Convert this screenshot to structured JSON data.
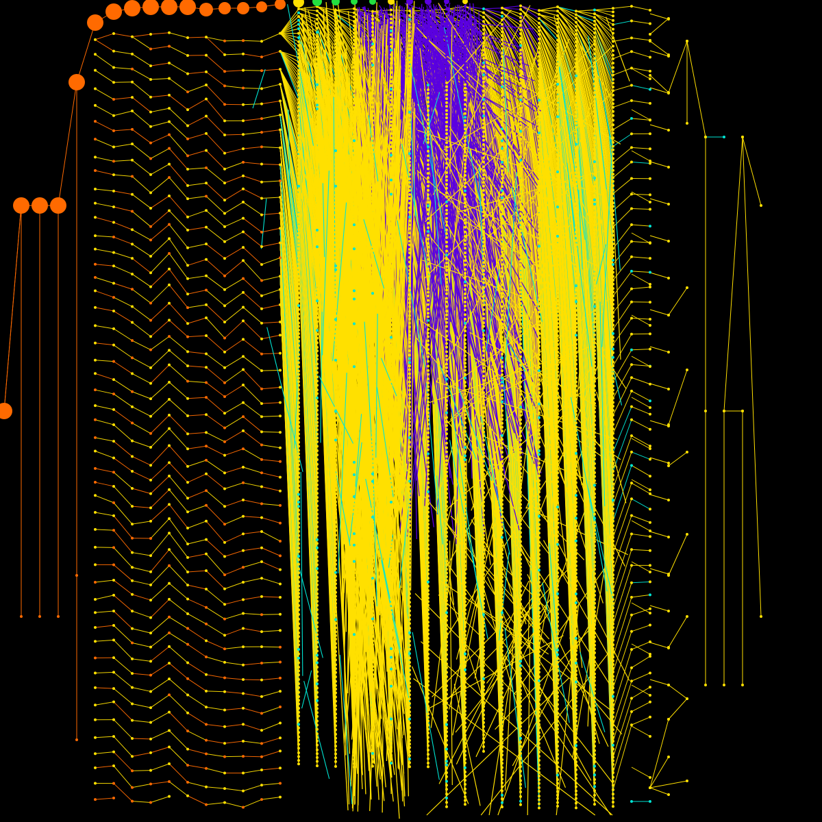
{
  "palette": {
    "background": "#000000",
    "orange": "#ff6a00",
    "yellow": "#ffe000",
    "cyan": "#00e5d4",
    "purple": "#5a00e0",
    "green": "#22e040"
  },
  "graph": {
    "type": "hierarchical-tree",
    "orientation": "top-to-bottom",
    "labels_shown": false,
    "edge_style": "straight",
    "node_shape": "circle",
    "groups": [
      {
        "color": "orange",
        "role": "root-chain"
      },
      {
        "color": "yellow",
        "role": "dominant"
      },
      {
        "color": "cyan",
        "role": "accent"
      },
      {
        "color": "purple",
        "role": "dense-cluster"
      },
      {
        "color": "green",
        "role": "accent"
      }
    ]
  }
}
